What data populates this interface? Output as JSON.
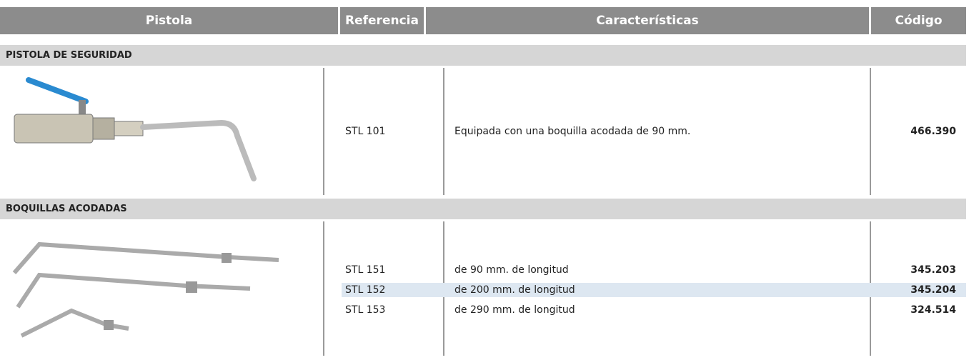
{
  "header": {
    "columns": [
      "Pistola",
      "Referencia",
      "Características",
      "Código"
    ]
  },
  "sections": [
    {
      "title": "PISTOLA DE SEGURIDAD",
      "rows": [
        {
          "reference": "STL 101",
          "description": "Equipada con una boquilla acodada de 90 mm.",
          "code": "466.390"
        }
      ]
    },
    {
      "title": "BOQUILLAS ACODADAS",
      "rows": [
        {
          "reference": "STL 151",
          "description": "de 90 mm. de longitud",
          "code": "345.203"
        },
        {
          "reference": "STL 152",
          "description": "de 200 mm. de longitud",
          "code": "345.204"
        },
        {
          "reference": "STL 153",
          "description": "de 290 mm. de longitud",
          "code": "324.514"
        }
      ]
    }
  ]
}
